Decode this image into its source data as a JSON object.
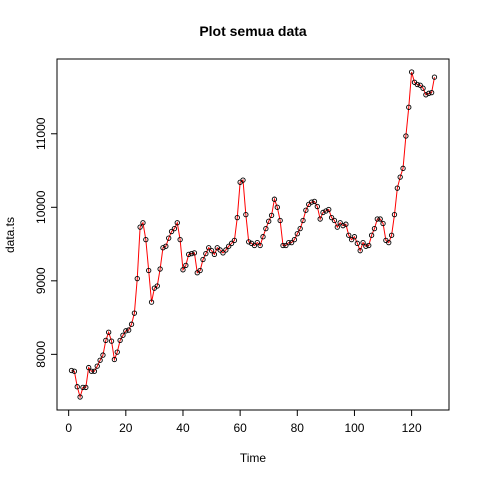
{
  "chart_data": {
    "type": "line",
    "title": "Plot semua data",
    "x_label": "Time",
    "y_label": "data.ts",
    "x": [
      1,
      2,
      3,
      4,
      5,
      6,
      7,
      8,
      9,
      10,
      11,
      12,
      13,
      14,
      15,
      16,
      17,
      18,
      19,
      20,
      21,
      22,
      23,
      24,
      25,
      26,
      27,
      28,
      29,
      30,
      31,
      32,
      33,
      34,
      35,
      36,
      37,
      38,
      39,
      40,
      41,
      42,
      43,
      44,
      45,
      46,
      47,
      48,
      49,
      50,
      51,
      52,
      53,
      54,
      55,
      56,
      57,
      58,
      59,
      60,
      61,
      62,
      63,
      64,
      65,
      66,
      67,
      68,
      69,
      70,
      71,
      72,
      73,
      74,
      75,
      76,
      77,
      78,
      79,
      80,
      81,
      82,
      83,
      84,
      85,
      86,
      87,
      88,
      89,
      90,
      91,
      92,
      93,
      94,
      95,
      96,
      97,
      98,
      99,
      100,
      101,
      102,
      103,
      104,
      105,
      106,
      107,
      108,
      109,
      110,
      111,
      112,
      113,
      114,
      115,
      116,
      117,
      118,
      119,
      120,
      121,
      122,
      123,
      124,
      125,
      126,
      127,
      128
    ],
    "series": [
      {
        "name": "data.ts",
        "color": "#ff0000",
        "marker_color": "#000000",
        "values": [
          7780,
          7770,
          7560,
          7420,
          7550,
          7550,
          7820,
          7770,
          7770,
          7840,
          7920,
          7990,
          8190,
          8300,
          8180,
          7930,
          8030,
          8190,
          8260,
          8320,
          8330,
          8410,
          8560,
          9030,
          9730,
          9790,
          9560,
          9140,
          8710,
          8900,
          8930,
          9160,
          9450,
          9470,
          9580,
          9670,
          9710,
          9790,
          9560,
          9150,
          9210,
          9360,
          9370,
          9380,
          9110,
          9140,
          9290,
          9370,
          9450,
          9410,
          9360,
          9450,
          9420,
          9380,
          9420,
          9470,
          9510,
          9550,
          9860,
          10340,
          10370,
          9900,
          9530,
          9510,
          9480,
          9520,
          9480,
          9600,
          9710,
          9810,
          9890,
          10110,
          10000,
          9820,
          9480,
          9480,
          9520,
          9520,
          9560,
          9640,
          9710,
          9820,
          9960,
          10040,
          10070,
          10080,
          10010,
          9840,
          9930,
          9950,
          9970,
          9860,
          9820,
          9730,
          9790,
          9750,
          9770,
          9620,
          9560,
          9600,
          9510,
          9410,
          9520,
          9470,
          9480,
          9620,
          9710,
          9840,
          9840,
          9780,
          9550,
          9520,
          9620,
          9900,
          10260,
          10410,
          10530,
          10970,
          11360,
          11840,
          11700,
          11670,
          11660,
          11620,
          11530,
          11550,
          11560,
          11770
        ]
      }
    ],
    "xlim": [
      -4.08,
      133.08
    ],
    "ylim": [
      7243,
      12017
    ],
    "xticks": [
      0,
      20,
      40,
      60,
      80,
      100,
      120
    ],
    "yticks": [
      8000,
      9000,
      10000,
      11000
    ]
  }
}
